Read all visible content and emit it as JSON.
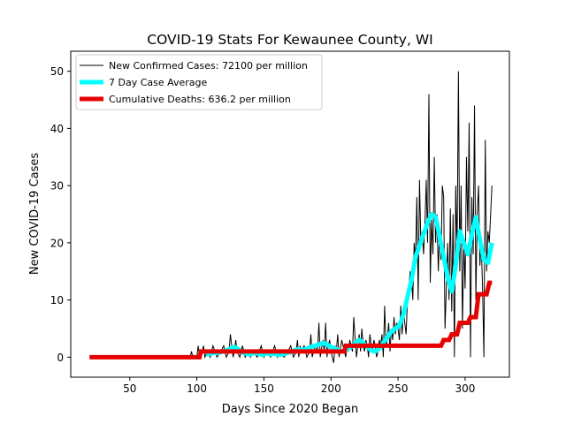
{
  "chart_data": {
    "type": "line",
    "title": "COVID-19 Stats For Kewaunee County, WI",
    "xlabel": "Days Since 2020 Began",
    "ylabel": "New COVID-19 Cases",
    "xlim": [
      6,
      333
    ],
    "ylim": [
      -3.5,
      53.5
    ],
    "xticks": [
      50,
      100,
      150,
      200,
      250,
      300
    ],
    "yticks": [
      0,
      10,
      20,
      30,
      40,
      50
    ],
    "grid": false,
    "legend_position": "top-left",
    "series": [
      {
        "name": "New Confirmed Cases: 72100 per million",
        "color": "#000000",
        "style": "thin-line",
        "x": [
          20,
          30,
          40,
          50,
          60,
          70,
          80,
          90,
          95,
          96,
          97,
          98,
          99,
          100,
          101,
          102,
          103,
          104,
          105,
          106,
          108,
          110,
          112,
          115,
          118,
          120,
          122,
          124,
          125,
          126,
          127,
          128,
          129,
          130,
          132,
          134,
          136,
          138,
          140,
          142,
          145,
          148,
          150,
          152,
          155,
          158,
          160,
          162,
          165,
          168,
          170,
          172,
          174,
          175,
          176,
          177,
          178,
          180,
          182,
          184,
          185,
          186,
          188,
          190,
          191,
          192,
          194,
          195,
          196,
          197,
          198,
          199,
          200,
          201,
          202,
          203,
          204,
          205,
          206,
          208,
          210,
          211,
          212,
          213,
          214,
          215,
          216,
          217,
          218,
          219,
          220,
          221,
          222,
          223,
          224,
          225,
          226,
          227,
          228,
          229,
          230,
          231,
          232,
          233,
          234,
          235,
          236,
          237,
          238,
          239,
          240,
          241,
          242,
          243,
          244,
          245,
          246,
          247,
          248,
          249,
          250,
          251,
          252,
          253,
          254,
          255,
          256,
          257,
          258,
          259,
          260,
          261,
          262,
          263,
          264,
          265,
          266,
          267,
          268,
          269,
          270,
          271,
          272,
          273,
          274,
          275,
          276,
          277,
          278,
          279,
          280,
          281,
          282,
          283,
          284,
          285,
          286,
          287,
          288,
          289,
          290,
          291,
          292,
          293,
          294,
          295,
          296,
          297,
          298,
          299,
          300,
          301,
          302,
          303,
          304,
          305,
          306,
          307,
          308,
          309,
          310,
          311,
          312,
          313,
          314,
          315,
          316,
          317,
          318,
          319,
          320
        ],
        "y": [
          0,
          0,
          0,
          0,
          0,
          0,
          0,
          0,
          0,
          1,
          0,
          0,
          0,
          0,
          2,
          0,
          0,
          1,
          2,
          0,
          1,
          0,
          2,
          0,
          1,
          2,
          0,
          1,
          4,
          2,
          0,
          1,
          3,
          1,
          0,
          2,
          0,
          1,
          0,
          1,
          0,
          2,
          0,
          1,
          0,
          2,
          0,
          1,
          0,
          1,
          2,
          0,
          1,
          3,
          0,
          2,
          1,
          2,
          0,
          1,
          4,
          0,
          2,
          1,
          6,
          0,
          3,
          1,
          6,
          0,
          2,
          3,
          1,
          0,
          -1,
          2,
          1,
          4,
          0,
          3,
          1,
          0,
          2,
          1,
          3,
          2,
          1,
          7,
          3,
          0,
          2,
          4,
          1,
          5,
          2,
          1,
          3,
          2,
          0,
          4,
          2,
          1,
          3,
          2,
          0,
          1,
          3,
          2,
          4,
          0,
          9,
          2,
          3,
          6,
          1,
          5,
          3,
          7,
          4,
          6,
          5,
          3,
          9,
          4,
          8,
          6,
          4,
          10,
          12,
          15,
          14,
          10,
          20,
          17,
          28,
          10,
          31,
          20,
          22,
          18,
          23,
          31,
          20,
          46,
          13,
          24,
          18,
          35,
          20,
          25,
          15,
          22,
          17,
          30,
          28,
          5,
          12,
          20,
          10,
          26,
          8,
          25,
          0,
          30,
          18,
          50,
          15,
          30,
          5,
          20,
          12,
          35,
          22,
          41,
          0,
          28,
          18,
          44,
          10,
          25,
          30,
          16,
          20,
          12,
          0,
          38,
          15,
          22,
          20,
          25,
          30
        ],
        "y_display": [
          0,
          0,
          0,
          0,
          0,
          0,
          0,
          0,
          0,
          1,
          0,
          0,
          0,
          0,
          2,
          0,
          0,
          1,
          2,
          0,
          1,
          0,
          2,
          0,
          1,
          2,
          0,
          1,
          4,
          2,
          0,
          1,
          3,
          1,
          0,
          2,
          0,
          1,
          0,
          1,
          0,
          2,
          0,
          1,
          0,
          2,
          0,
          1,
          0,
          1,
          2,
          0,
          1,
          3,
          0,
          2,
          1,
          2,
          0,
          1,
          4,
          0,
          2,
          1,
          6,
          0,
          3,
          1,
          6,
          0,
          2,
          3,
          1,
          0,
          -1,
          2,
          1,
          4,
          0,
          3,
          1,
          0,
          2,
          1,
          3,
          2,
          1,
          7,
          3,
          0,
          2,
          4,
          1,
          5,
          2,
          1,
          3,
          2,
          0,
          4,
          2,
          1,
          3,
          2,
          0,
          1,
          3,
          2,
          4,
          0,
          9,
          2,
          3,
          6,
          1,
          5,
          3,
          7,
          4,
          6,
          5,
          3,
          9,
          4,
          8,
          6,
          4,
          10,
          12,
          15,
          14,
          10,
          20,
          17,
          28,
          10,
          31,
          20,
          22,
          18,
          23,
          31,
          20,
          46,
          13,
          24,
          18,
          35,
          20,
          25,
          15,
          22,
          17,
          30,
          28,
          5,
          12,
          20,
          10,
          26,
          8,
          25,
          0,
          30,
          18,
          50,
          15,
          30,
          5,
          20,
          12,
          35,
          22,
          41,
          0,
          28,
          18,
          44,
          10,
          25,
          30,
          16,
          20,
          12,
          0,
          38,
          15,
          22,
          20,
          25,
          30
        ]
      },
      {
        "name": "7 Day Case Average",
        "color": "#00ffff",
        "style": "thick-line",
        "x": [
          107,
          110,
          113,
          116,
          119,
          122,
          125,
          128,
          131,
          134,
          137,
          140,
          143,
          146,
          149,
          152,
          155,
          158,
          161,
          164,
          167,
          170,
          173,
          176,
          179,
          182,
          185,
          188,
          191,
          194,
          197,
          200,
          203,
          206,
          209,
          212,
          215,
          218,
          221,
          224,
          227,
          230,
          233,
          236,
          239,
          242,
          245,
          248,
          251,
          254,
          257,
          260,
          263,
          266,
          269,
          272,
          275,
          278,
          281,
          284,
          287,
          290,
          293,
          296,
          299,
          302,
          305,
          308,
          311,
          314,
          317,
          320
        ],
        "y": [
          0.5,
          0.6,
          0.8,
          0.7,
          1.0,
          1.2,
          1.5,
          1.8,
          1.4,
          0.8,
          0.6,
          0.5,
          0.8,
          0.6,
          0.4,
          0.7,
          0.5,
          0.6,
          0.4,
          0.5,
          0.7,
          0.9,
          1.2,
          1.4,
          1.2,
          1.5,
          1.8,
          2.0,
          2.2,
          2.5,
          2.2,
          1.8,
          1.5,
          1.2,
          1.0,
          1.4,
          1.8,
          2.5,
          3.0,
          2.5,
          1.8,
          1.2,
          1.0,
          1.5,
          2.5,
          3.5,
          4.5,
          5.0,
          5.5,
          7.5,
          10.5,
          13.5,
          17.5,
          19.5,
          21.5,
          23.5,
          25.0,
          24.5,
          21.0,
          17.5,
          14.0,
          11.5,
          16.0,
          22.0,
          20.0,
          18.0,
          21.5,
          24.5,
          20.5,
          17.0,
          16.5,
          20.0
        ]
      },
      {
        "name": "Cumulative Deaths: 636.2 per million",
        "color": "#e60000",
        "style": "thick-step",
        "x": [
          20,
          102,
          103,
          210,
          211,
          282,
          284,
          288,
          290,
          294,
          296,
          302,
          304,
          308,
          310,
          316,
          318,
          320
        ],
        "y": [
          0,
          0,
          1,
          1,
          2,
          2,
          3,
          3,
          4,
          4,
          6,
          6,
          7,
          7,
          11,
          11,
          13,
          13
        ]
      }
    ]
  }
}
